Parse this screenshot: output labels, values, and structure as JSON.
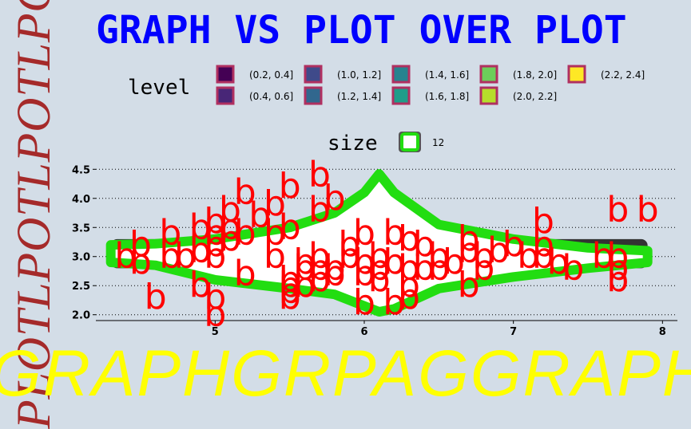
{
  "title": "GRAPH VS PLOT OVER PLOT",
  "side_caption": "PLOTLPOTLPOTLPOT",
  "bottom_caption": "GRAPHGRPAGGRAPH",
  "legend": {
    "level_title": "level",
    "size_title": "size",
    "size_label": "12",
    "levels": [
      {
        "label": "(0.2, 0.4]",
        "color": "#440154"
      },
      {
        "label": "(0.4, 0.6]",
        "color": "#482677"
      },
      {
        "label": "(1.0, 1.2]",
        "color": "#3f4a8a"
      },
      {
        "label": "(1.2, 1.4]",
        "color": "#31678e"
      },
      {
        "label": "(1.4, 1.6]",
        "color": "#26838f"
      },
      {
        "label": "(1.6, 1.8]",
        "color": "#1f9d8a"
      },
      {
        "label": "(1.8, 2.0]",
        "color": "#6cce5a"
      },
      {
        "label": "(2.0, 2.2]",
        "color": "#b6de2b"
      },
      {
        "label": "(2.2, 2.4]",
        "color": "#fee825"
      }
    ]
  },
  "colors": {
    "background": "#d3dde7",
    "title": "#0000ff",
    "violin_fill": "#ffffff",
    "violin_outline": "#22dd11",
    "box_outline": "#333333",
    "marks": "#ff0000",
    "bottom_caption": "#ffff00",
    "side_caption": "#a52a2a",
    "legend_key_border": "#b03060"
  },
  "chart_data": {
    "type": "scatter",
    "mark_label": "b",
    "xlim": [
      4.2,
      8.1
    ],
    "ylim": [
      1.9,
      4.6
    ],
    "x_ticks": [
      5,
      6,
      7,
      8
    ],
    "y_ticks": [
      2.0,
      2.5,
      3.0,
      3.5,
      4.0,
      4.5
    ],
    "grid": "horizontal dotted",
    "violin": {
      "x_range": [
        4.3,
        7.9
      ],
      "profile": [
        [
          4.3,
          2.9,
          3.2
        ],
        [
          4.6,
          2.85,
          3.22
        ],
        [
          5.0,
          2.6,
          3.3
        ],
        [
          5.5,
          2.45,
          3.5
        ],
        [
          5.8,
          2.35,
          3.75
        ],
        [
          6.0,
          2.15,
          4.1
        ],
        [
          6.1,
          2.05,
          4.42
        ],
        [
          6.2,
          2.1,
          4.1
        ],
        [
          6.5,
          2.45,
          3.55
        ],
        [
          7.0,
          2.65,
          3.3
        ],
        [
          7.5,
          2.8,
          3.15
        ],
        [
          7.9,
          2.9,
          3.1
        ]
      ]
    },
    "box": {
      "x_range": [
        4.3,
        7.9
      ],
      "y_range": [
        2.8,
        3.3
      ]
    },
    "points": [
      [
        4.4,
        3.0
      ],
      [
        4.5,
        3.2
      ],
      [
        4.5,
        2.9
      ],
      [
        4.6,
        2.3
      ],
      [
        4.7,
        3.4
      ],
      [
        4.7,
        3.0
      ],
      [
        4.8,
        3.0
      ],
      [
        4.9,
        3.1
      ],
      [
        4.9,
        3.5
      ],
      [
        4.9,
        2.5
      ],
      [
        5.0,
        3.4
      ],
      [
        5.0,
        3.0
      ],
      [
        5.0,
        2.0
      ],
      [
        5.0,
        3.6
      ],
      [
        5.0,
        2.3
      ],
      [
        5.0,
        3.2
      ],
      [
        5.1,
        3.5
      ],
      [
        5.1,
        3.8
      ],
      [
        5.1,
        3.3
      ],
      [
        5.2,
        4.1
      ],
      [
        5.2,
        3.4
      ],
      [
        5.2,
        2.7
      ],
      [
        5.3,
        3.7
      ],
      [
        5.4,
        3.9
      ],
      [
        5.4,
        3.4
      ],
      [
        5.4,
        3.0
      ],
      [
        5.5,
        4.2
      ],
      [
        5.5,
        3.5
      ],
      [
        5.5,
        2.3
      ],
      [
        5.5,
        2.4
      ],
      [
        5.5,
        2.5
      ],
      [
        5.5,
        2.6
      ],
      [
        5.6,
        2.9
      ],
      [
        5.6,
        2.5
      ],
      [
        5.6,
        2.8
      ],
      [
        5.7,
        4.4
      ],
      [
        5.7,
        3.8
      ],
      [
        5.7,
        2.8
      ],
      [
        5.7,
        2.6
      ],
      [
        5.7,
        3.0
      ],
      [
        5.8,
        4.0
      ],
      [
        5.8,
        2.7
      ],
      [
        5.8,
        2.8
      ],
      [
        5.9,
        3.0
      ],
      [
        5.9,
        3.2
      ],
      [
        6.0,
        2.2
      ],
      [
        6.0,
        3.4
      ],
      [
        6.0,
        2.9
      ],
      [
        6.0,
        2.7
      ],
      [
        6.1,
        2.8
      ],
      [
        6.1,
        3.0
      ],
      [
        6.1,
        2.6
      ],
      [
        6.2,
        2.2
      ],
      [
        6.2,
        2.9
      ],
      [
        6.2,
        3.4
      ],
      [
        6.3,
        2.8
      ],
      [
        6.3,
        3.3
      ],
      [
        6.3,
        2.5
      ],
      [
        6.3,
        2.3
      ],
      [
        6.4,
        2.8
      ],
      [
        6.4,
        3.2
      ],
      [
        6.5,
        2.8
      ],
      [
        6.5,
        3.0
      ],
      [
        6.6,
        2.9
      ],
      [
        6.7,
        2.5
      ],
      [
        6.7,
        3.1
      ],
      [
        6.7,
        3.3
      ],
      [
        6.8,
        2.8
      ],
      [
        6.8,
        3.0
      ],
      [
        6.9,
        3.1
      ],
      [
        7.0,
        3.2
      ],
      [
        7.1,
        3.0
      ],
      [
        7.2,
        3.6
      ],
      [
        7.2,
        3.2
      ],
      [
        7.2,
        3.0
      ],
      [
        7.3,
        2.9
      ],
      [
        7.4,
        2.8
      ],
      [
        7.6,
        3.0
      ],
      [
        7.7,
        3.8
      ],
      [
        7.7,
        2.6
      ],
      [
        7.7,
        2.8
      ],
      [
        7.7,
        3.0
      ],
      [
        7.9,
        3.8
      ]
    ]
  }
}
